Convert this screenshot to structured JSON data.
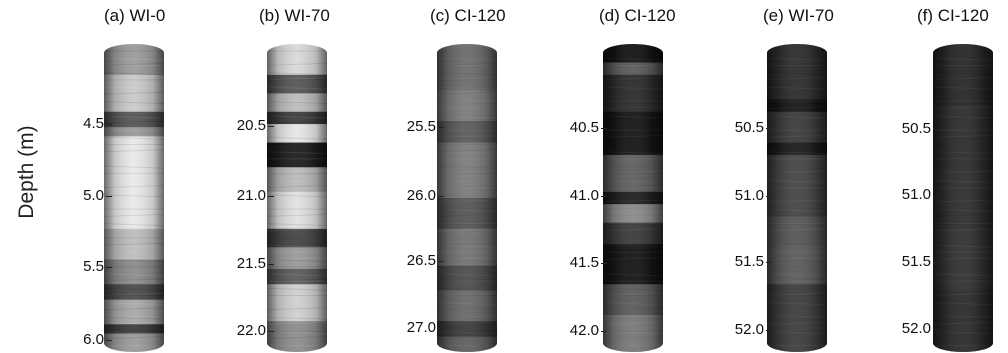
{
  "figure": {
    "y_axis_label": "Depth (m)"
  },
  "panels": [
    {
      "title": "(a) WI-0",
      "ticks": [
        "4.5",
        "5.0",
        "5.5",
        "6.0"
      ],
      "tone": "light",
      "bands": [
        [
          0.0,
          0.1,
          "#9a9a9a"
        ],
        [
          0.1,
          0.22,
          "#c9c9c9"
        ],
        [
          0.22,
          0.27,
          "#555"
        ],
        [
          0.27,
          0.3,
          "#999"
        ],
        [
          0.3,
          0.6,
          "#e9e9e9"
        ],
        [
          0.6,
          0.7,
          "#bdbdbd"
        ],
        [
          0.7,
          0.78,
          "#8a8a8a"
        ],
        [
          0.78,
          0.83,
          "#4a4a4a"
        ],
        [
          0.83,
          0.91,
          "#a8a8a8"
        ],
        [
          0.91,
          0.94,
          "#3a3a3a"
        ],
        [
          0.94,
          1.0,
          "#9a9a9a"
        ]
      ]
    },
    {
      "title": "(b) WI-70",
      "ticks": [
        "20.5",
        "21.0",
        "21.5",
        "22.0"
      ],
      "tone": "light",
      "bands": [
        [
          0.0,
          0.1,
          "#d8d8d8"
        ],
        [
          0.1,
          0.16,
          "#555"
        ],
        [
          0.16,
          0.22,
          "#bbb"
        ],
        [
          0.22,
          0.26,
          "#3c3c3c"
        ],
        [
          0.26,
          0.32,
          "#e6e6e6"
        ],
        [
          0.32,
          0.4,
          "#1c1c1c"
        ],
        [
          0.4,
          0.48,
          "#b9b9b9"
        ],
        [
          0.48,
          0.6,
          "#e0e0e0"
        ],
        [
          0.6,
          0.66,
          "#444"
        ],
        [
          0.66,
          0.73,
          "#999"
        ],
        [
          0.73,
          0.78,
          "#5a5a5a"
        ],
        [
          0.78,
          0.9,
          "#cfcfcf"
        ],
        [
          0.9,
          1.0,
          "#8c8c8c"
        ]
      ]
    },
    {
      "title": "(c) CI-120",
      "ticks": [
        "25.5",
        "26.0",
        "26.5",
        "27.0"
      ],
      "tone": "mid",
      "bands": [
        [
          0.0,
          0.15,
          "#6b6b6b"
        ],
        [
          0.15,
          0.25,
          "#7a7a7a"
        ],
        [
          0.25,
          0.32,
          "#5a5a5a"
        ],
        [
          0.32,
          0.5,
          "#7b7b7b"
        ],
        [
          0.5,
          0.6,
          "#555"
        ],
        [
          0.6,
          0.72,
          "#727272"
        ],
        [
          0.72,
          0.8,
          "#4c4c4c"
        ],
        [
          0.8,
          0.9,
          "#686868"
        ],
        [
          0.9,
          0.95,
          "#3a3a3a"
        ],
        [
          0.95,
          1.0,
          "#5e5e5e"
        ]
      ]
    },
    {
      "title": "(d) CI-120",
      "ticks": [
        "40.5",
        "41.0",
        "41.5",
        "42.0"
      ],
      "tone": "dark",
      "bands": [
        [
          0.0,
          0.06,
          "#121212"
        ],
        [
          0.06,
          0.1,
          "#5a5a5a"
        ],
        [
          0.1,
          0.22,
          "#2a2a2a"
        ],
        [
          0.22,
          0.36,
          "#141414"
        ],
        [
          0.36,
          0.48,
          "#5e5e5e"
        ],
        [
          0.48,
          0.52,
          "#1e1e1e"
        ],
        [
          0.52,
          0.58,
          "#8a8a8a"
        ],
        [
          0.58,
          0.65,
          "#3a3a3a"
        ],
        [
          0.65,
          0.78,
          "#141414"
        ],
        [
          0.78,
          0.88,
          "#5a5a5a"
        ],
        [
          0.88,
          1.0,
          "#777"
        ]
      ]
    },
    {
      "title": "(e) WI-70",
      "ticks": [
        "50.5",
        "51.0",
        "51.5",
        "52.0"
      ],
      "tone": "dark",
      "bands": [
        [
          0.0,
          0.18,
          "#2b2b2b"
        ],
        [
          0.18,
          0.22,
          "#151515"
        ],
        [
          0.22,
          0.32,
          "#3a3a3a"
        ],
        [
          0.32,
          0.36,
          "#1a1a1a"
        ],
        [
          0.36,
          0.56,
          "#444"
        ],
        [
          0.56,
          0.66,
          "#555"
        ],
        [
          0.66,
          0.78,
          "#5a5a5a"
        ],
        [
          0.78,
          1.0,
          "#3c3c3c"
        ]
      ]
    },
    {
      "title": "(f) CI-120",
      "ticks": [
        "50.5",
        "51.0",
        "51.5",
        "52.0"
      ],
      "tone": "vdark",
      "bands": [
        [
          0.0,
          0.2,
          "#262626"
        ],
        [
          0.2,
          0.4,
          "#2b2b2b"
        ],
        [
          0.4,
          0.6,
          "#2d2d2d"
        ],
        [
          0.6,
          0.8,
          "#303030"
        ],
        [
          0.8,
          1.0,
          "#2a2a2a"
        ]
      ]
    }
  ]
}
